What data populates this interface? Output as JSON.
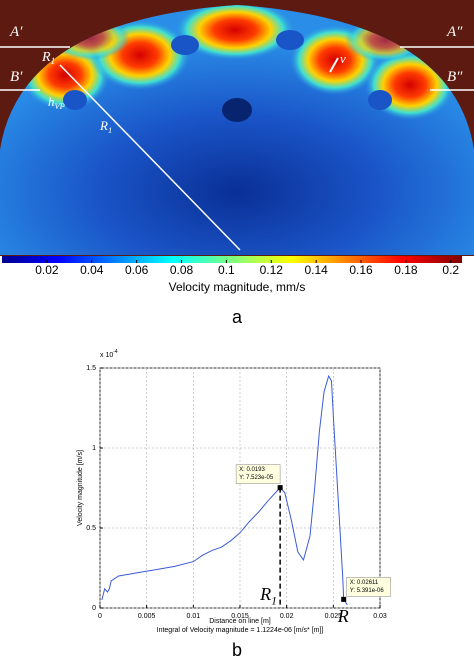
{
  "chart_data": [
    {
      "type": "colorbar",
      "clim": [
        0,
        0.205
      ],
      "ticks": [
        0.02,
        0.04,
        0.06,
        0.08,
        0.1,
        0.12,
        0.14,
        0.16,
        0.18,
        0.2
      ],
      "label": "Velocity magnitude, mm/s",
      "annotations": [
        {
          "text": "A′"
        },
        {
          "text": "A″"
        },
        {
          "text": "B′"
        },
        {
          "text": "B″"
        },
        {
          "text": "R",
          "sub": "1"
        },
        {
          "text": "h",
          "sub": "VP"
        },
        {
          "text": "R",
          "sub": "1"
        },
        {
          "text": "v"
        }
      ],
      "panel_label": "a"
    },
    {
      "type": "line",
      "xlabel": "Distance on line [m]",
      "note": "Integral of Velocity magnitude  = 1.1224e-06 [m/s* [m]]",
      "ylabel": "Velocity magnitude [m/s]",
      "y_multiplier": {
        "text": "x 10",
        "exp": "-4"
      },
      "xlim": [
        0,
        0.03
      ],
      "ylim": [
        0,
        1.5
      ],
      "xticks": [
        0,
        0.005,
        0.01,
        0.015,
        0.02,
        0.025,
        0.03
      ],
      "yticks": [
        0,
        0.5,
        1,
        1.5
      ],
      "grid": true,
      "series": [
        {
          "color": "#3b5bd6",
          "x": [
            0.0002,
            0.0005,
            0.0008,
            0.001,
            0.0012,
            0.002,
            0.004,
            0.006,
            0.008,
            0.01,
            0.011,
            0.012,
            0.013,
            0.014,
            0.015,
            0.016,
            0.017,
            0.018,
            0.0193,
            0.0198,
            0.0205,
            0.0212,
            0.0218,
            0.0225,
            0.023,
            0.0235,
            0.024,
            0.0245,
            0.0248,
            0.025,
            0.0255,
            0.026,
            0.02611,
            0.0265
          ],
          "values": [
            0.05,
            0.12,
            0.1,
            0.12,
            0.17,
            0.2,
            0.22,
            0.24,
            0.26,
            0.29,
            0.33,
            0.36,
            0.38,
            0.42,
            0.47,
            0.54,
            0.6,
            0.67,
            0.7523,
            0.72,
            0.55,
            0.35,
            0.3,
            0.45,
            0.75,
            1.1,
            1.35,
            1.45,
            1.42,
            1.2,
            0.7,
            0.2,
            0.05391,
            0.02
          ]
        }
      ],
      "datatips": [
        {
          "x": 0.0193,
          "y": 0.7523,
          "x_label": "X: 0.0193",
          "y_label": "Y: 7.523e-05",
          "marker": {
            "text": "R",
            "sub": "1"
          }
        },
        {
          "x": 0.02611,
          "y": 0.05391,
          "x_label": "X: 0.02611",
          "y_label": "Y: 5.391e-06",
          "marker": {
            "text": "R"
          }
        }
      ],
      "panel_label": "b"
    }
  ]
}
